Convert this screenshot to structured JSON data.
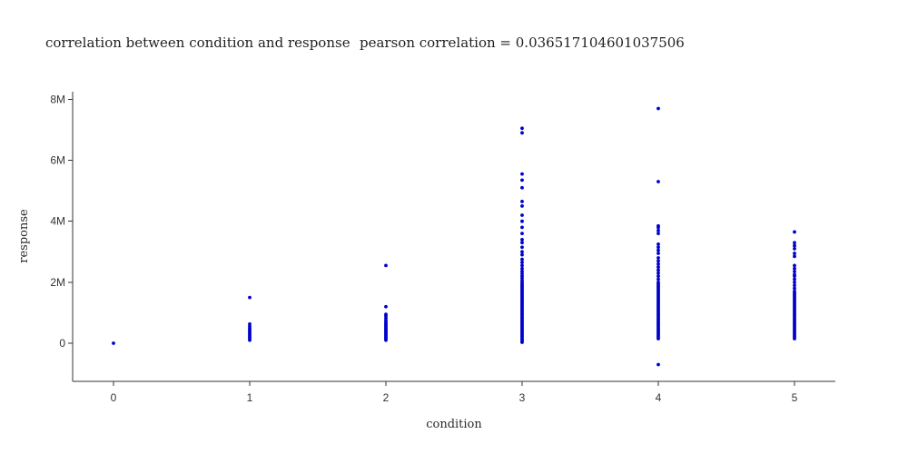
{
  "title": {
    "left": "correlation between condition and response",
    "right": "pearson correlation = 0.036517104601037506"
  },
  "chart_data": {
    "type": "scatter",
    "title": "correlation between condition and response    pearson correlation = 0.036517104601037506",
    "xlabel": "condition",
    "ylabel": "response",
    "xlim": [
      -0.3,
      5.3
    ],
    "ylim": [
      -1250000,
      8250000
    ],
    "x_ticks": [
      {
        "value": 0,
        "label": "0"
      },
      {
        "value": 1,
        "label": "1"
      },
      {
        "value": 2,
        "label": "2"
      },
      {
        "value": 3,
        "label": "3"
      },
      {
        "value": 4,
        "label": "4"
      },
      {
        "value": 5,
        "label": "5"
      }
    ],
    "y_ticks": [
      {
        "value": 0,
        "label": "0"
      },
      {
        "value": 2000000,
        "label": "2M"
      },
      {
        "value": 4000000,
        "label": "4M"
      },
      {
        "value": 6000000,
        "label": "6M"
      },
      {
        "value": 8000000,
        "label": "8M"
      }
    ],
    "grid": false,
    "marker_color": "#0000cc",
    "series": [
      {
        "points": [
          [
            0,
            0
          ],
          [
            1,
            100000
          ],
          [
            1,
            150000
          ],
          [
            1,
            200000
          ],
          [
            1,
            250000
          ],
          [
            1,
            300000
          ],
          [
            1,
            350000
          ],
          [
            1,
            400000
          ],
          [
            1,
            450000
          ],
          [
            1,
            500000
          ],
          [
            1,
            560000
          ],
          [
            1,
            630000
          ],
          [
            1,
            1500000
          ],
          [
            2,
            100000
          ],
          [
            2,
            140000
          ],
          [
            2,
            180000
          ],
          [
            2,
            220000
          ],
          [
            2,
            260000
          ],
          [
            2,
            300000
          ],
          [
            2,
            340000
          ],
          [
            2,
            380000
          ],
          [
            2,
            420000
          ],
          [
            2,
            460000
          ],
          [
            2,
            500000
          ],
          [
            2,
            540000
          ],
          [
            2,
            580000
          ],
          [
            2,
            620000
          ],
          [
            2,
            660000
          ],
          [
            2,
            700000
          ],
          [
            2,
            760000
          ],
          [
            2,
            830000
          ],
          [
            2,
            900000
          ],
          [
            2,
            950000
          ],
          [
            2,
            1200000
          ],
          [
            2,
            2550000
          ],
          [
            3,
            30000
          ],
          [
            3,
            80000
          ],
          [
            3,
            130000
          ],
          [
            3,
            180000
          ],
          [
            3,
            230000
          ],
          [
            3,
            280000
          ],
          [
            3,
            330000
          ],
          [
            3,
            380000
          ],
          [
            3,
            430000
          ],
          [
            3,
            480000
          ],
          [
            3,
            530000
          ],
          [
            3,
            580000
          ],
          [
            3,
            630000
          ],
          [
            3,
            680000
          ],
          [
            3,
            730000
          ],
          [
            3,
            780000
          ],
          [
            3,
            830000
          ],
          [
            3,
            880000
          ],
          [
            3,
            930000
          ],
          [
            3,
            980000
          ],
          [
            3,
            1030000
          ],
          [
            3,
            1080000
          ],
          [
            3,
            1130000
          ],
          [
            3,
            1180000
          ],
          [
            3,
            1230000
          ],
          [
            3,
            1280000
          ],
          [
            3,
            1330000
          ],
          [
            3,
            1380000
          ],
          [
            3,
            1430000
          ],
          [
            3,
            1480000
          ],
          [
            3,
            1530000
          ],
          [
            3,
            1580000
          ],
          [
            3,
            1630000
          ],
          [
            3,
            1680000
          ],
          [
            3,
            1730000
          ],
          [
            3,
            1780000
          ],
          [
            3,
            1830000
          ],
          [
            3,
            1880000
          ],
          [
            3,
            1930000
          ],
          [
            3,
            1980000
          ],
          [
            3,
            2050000
          ],
          [
            3,
            2130000
          ],
          [
            3,
            2200000
          ],
          [
            3,
            2280000
          ],
          [
            3,
            2360000
          ],
          [
            3,
            2450000
          ],
          [
            3,
            2550000
          ],
          [
            3,
            2650000
          ],
          [
            3,
            2750000
          ],
          [
            3,
            2900000
          ],
          [
            3,
            3000000
          ],
          [
            3,
            3150000
          ],
          [
            3,
            3300000
          ],
          [
            3,
            3400000
          ],
          [
            3,
            3600000
          ],
          [
            3,
            3800000
          ],
          [
            3,
            4000000
          ],
          [
            3,
            4200000
          ],
          [
            3,
            4500000
          ],
          [
            3,
            4650000
          ],
          [
            3,
            5100000
          ],
          [
            3,
            5350000
          ],
          [
            3,
            5550000
          ],
          [
            3,
            6900000
          ],
          [
            3,
            7050000
          ],
          [
            4,
            -700000
          ],
          [
            4,
            150000
          ],
          [
            4,
            200000
          ],
          [
            4,
            250000
          ],
          [
            4,
            300000
          ],
          [
            4,
            350000
          ],
          [
            4,
            400000
          ],
          [
            4,
            450000
          ],
          [
            4,
            500000
          ],
          [
            4,
            550000
          ],
          [
            4,
            600000
          ],
          [
            4,
            650000
          ],
          [
            4,
            700000
          ],
          [
            4,
            750000
          ],
          [
            4,
            800000
          ],
          [
            4,
            850000
          ],
          [
            4,
            900000
          ],
          [
            4,
            950000
          ],
          [
            4,
            1000000
          ],
          [
            4,
            1050000
          ],
          [
            4,
            1100000
          ],
          [
            4,
            1150000
          ],
          [
            4,
            1200000
          ],
          [
            4,
            1250000
          ],
          [
            4,
            1300000
          ],
          [
            4,
            1350000
          ],
          [
            4,
            1400000
          ],
          [
            4,
            1450000
          ],
          [
            4,
            1500000
          ],
          [
            4,
            1550000
          ],
          [
            4,
            1600000
          ],
          [
            4,
            1650000
          ],
          [
            4,
            1700000
          ],
          [
            4,
            1750000
          ],
          [
            4,
            1800000
          ],
          [
            4,
            1850000
          ],
          [
            4,
            1900000
          ],
          [
            4,
            1950000
          ],
          [
            4,
            2000000
          ],
          [
            4,
            2100000
          ],
          [
            4,
            2200000
          ],
          [
            4,
            2300000
          ],
          [
            4,
            2400000
          ],
          [
            4,
            2500000
          ],
          [
            4,
            2600000
          ],
          [
            4,
            2700000
          ],
          [
            4,
            2800000
          ],
          [
            4,
            2950000
          ],
          [
            4,
            3050000
          ],
          [
            4,
            3150000
          ],
          [
            4,
            3250000
          ],
          [
            4,
            3600000
          ],
          [
            4,
            3700000
          ],
          [
            4,
            3800000
          ],
          [
            4,
            3850000
          ],
          [
            4,
            5300000
          ],
          [
            4,
            7700000
          ],
          [
            5,
            150000
          ],
          [
            5,
            200000
          ],
          [
            5,
            250000
          ],
          [
            5,
            300000
          ],
          [
            5,
            350000
          ],
          [
            5,
            400000
          ],
          [
            5,
            450000
          ],
          [
            5,
            500000
          ],
          [
            5,
            550000
          ],
          [
            5,
            600000
          ],
          [
            5,
            650000
          ],
          [
            5,
            700000
          ],
          [
            5,
            750000
          ],
          [
            5,
            800000
          ],
          [
            5,
            850000
          ],
          [
            5,
            900000
          ],
          [
            5,
            950000
          ],
          [
            5,
            1000000
          ],
          [
            5,
            1050000
          ],
          [
            5,
            1100000
          ],
          [
            5,
            1150000
          ],
          [
            5,
            1200000
          ],
          [
            5,
            1250000
          ],
          [
            5,
            1300000
          ],
          [
            5,
            1350000
          ],
          [
            5,
            1400000
          ],
          [
            5,
            1450000
          ],
          [
            5,
            1500000
          ],
          [
            5,
            1550000
          ],
          [
            5,
            1600000
          ],
          [
            5,
            1650000
          ],
          [
            5,
            1700000
          ],
          [
            5,
            1800000
          ],
          [
            5,
            1900000
          ],
          [
            5,
            2000000
          ],
          [
            5,
            2100000
          ],
          [
            5,
            2200000
          ],
          [
            5,
            2250000
          ],
          [
            5,
            2350000
          ],
          [
            5,
            2450000
          ],
          [
            5,
            2550000
          ],
          [
            5,
            2850000
          ],
          [
            5,
            2950000
          ],
          [
            5,
            3100000
          ],
          [
            5,
            3200000
          ],
          [
            5,
            3300000
          ],
          [
            5,
            3650000
          ]
        ]
      }
    ]
  }
}
